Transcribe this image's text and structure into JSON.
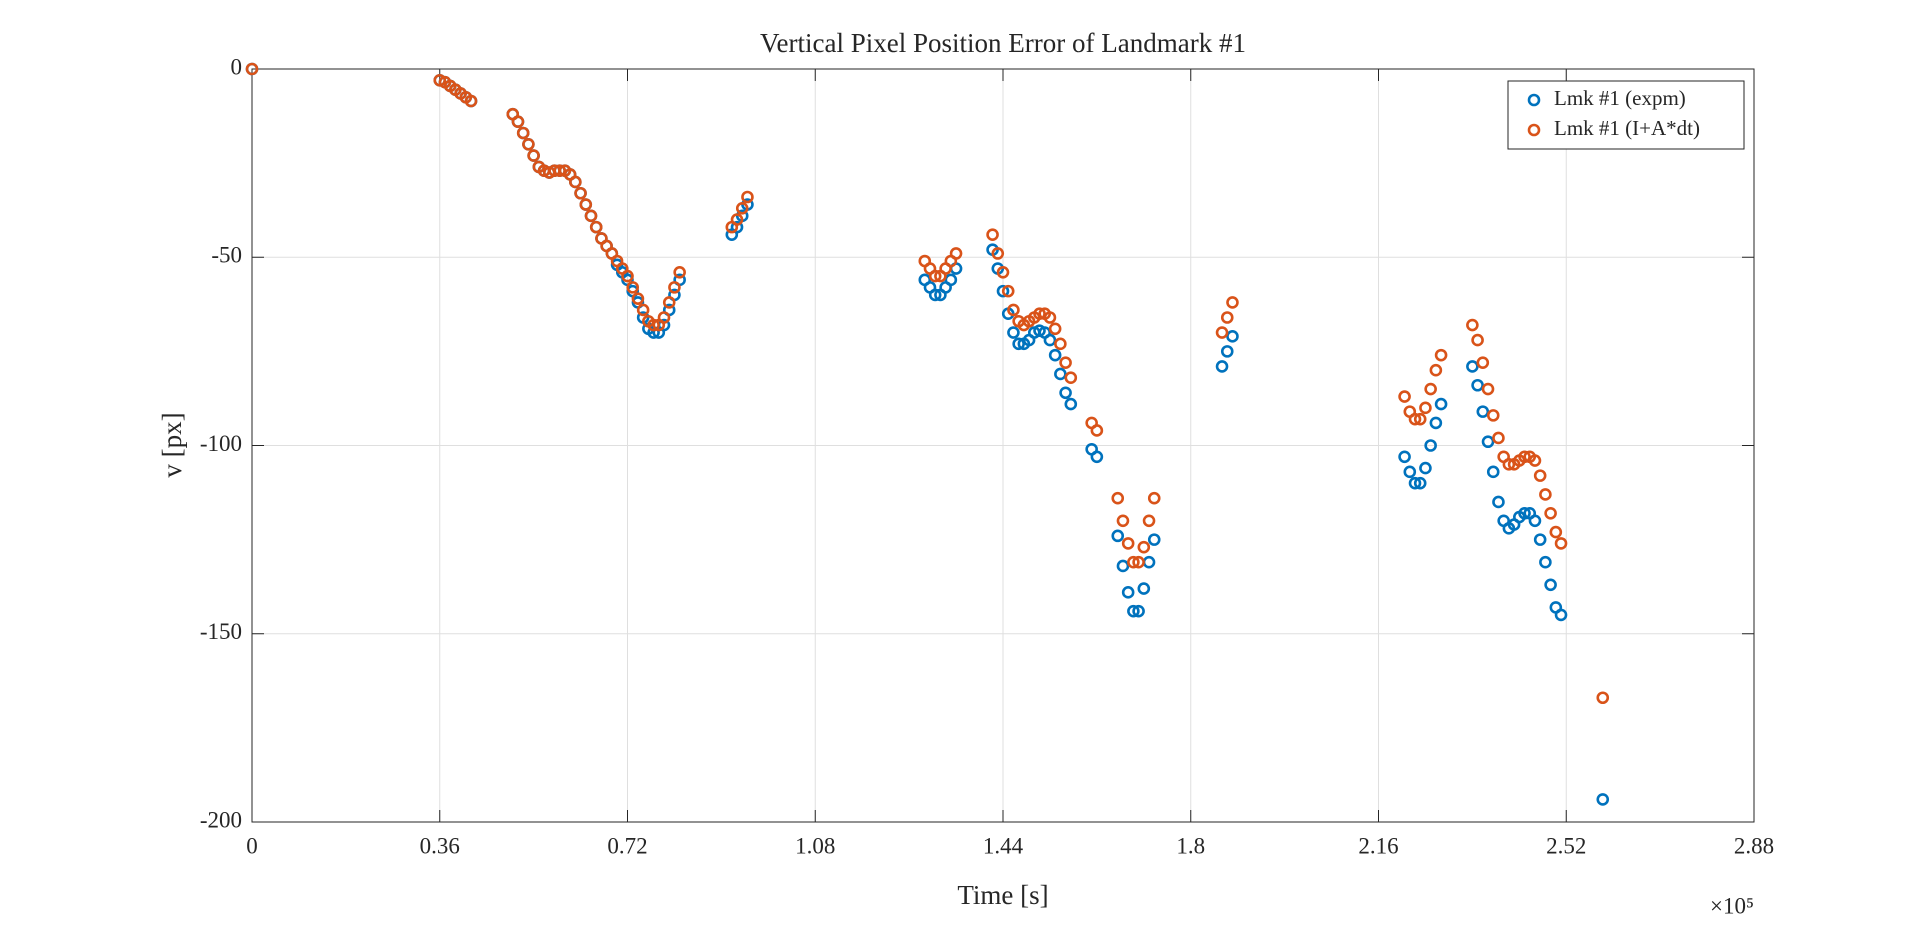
{
  "chart_data": {
    "type": "scatter",
    "title": "Vertical Pixel Position Error of Landmark #1",
    "xlabel": "Time [s]",
    "ylabel": "v [px]",
    "x_exponent": "×10⁵",
    "xlim": [
      0,
      2.88
    ],
    "ylim": [
      -200,
      0
    ],
    "xticks": [
      0,
      0.36,
      0.72,
      1.08,
      1.44,
      1.8,
      2.16,
      2.52,
      2.88
    ],
    "yticks": [
      -200,
      -150,
      -100,
      -50,
      0
    ],
    "grid": true,
    "legend": "northeast",
    "x": [
      0,
      0.36,
      0.37,
      0.38,
      0.39,
      0.4,
      0.41,
      0.42,
      0.5,
      0.51,
      0.52,
      0.53,
      0.54,
      0.55,
      0.56,
      0.57,
      0.58,
      0.59,
      0.6,
      0.61,
      0.62,
      0.63,
      0.64,
      0.65,
      0.66,
      0.67,
      0.68,
      0.69,
      0.7,
      0.71,
      0.72,
      0.73,
      0.74,
      0.75,
      0.76,
      0.77,
      0.78,
      0.79,
      0.8,
      0.81,
      0.82,
      0.92,
      0.93,
      0.94,
      0.95,
      1.29,
      1.3,
      1.31,
      1.32,
      1.33,
      1.34,
      1.35,
      1.42,
      1.43,
      1.44,
      1.45,
      1.46,
      1.47,
      1.48,
      1.49,
      1.5,
      1.51,
      1.52,
      1.53,
      1.54,
      1.55,
      1.56,
      1.57,
      1.61,
      1.62,
      1.66,
      1.67,
      1.68,
      1.69,
      1.7,
      1.71,
      1.72,
      1.73,
      1.86,
      1.87,
      1.88,
      2.21,
      2.22,
      2.23,
      2.24,
      2.25,
      2.26,
      2.27,
      2.28,
      2.34,
      2.35,
      2.36,
      2.37,
      2.38,
      2.39,
      2.4,
      2.41,
      2.42,
      2.43,
      2.44,
      2.45,
      2.46,
      2.47,
      2.48,
      2.49,
      2.5,
      2.51,
      2.59
    ],
    "series": [
      {
        "name": "Lmk #1 (expm)",
        "color": "#0072BD",
        "values": [
          0,
          -3,
          -3.5,
          -4.5,
          -5.5,
          -6.5,
          -7.5,
          -8.5,
          -12,
          -14,
          -17,
          -20,
          -23,
          -26,
          -27,
          -27.5,
          -27,
          -27,
          -27,
          -28,
          -30,
          -33,
          -36,
          -39,
          -42,
          -45,
          -47,
          -49,
          -52,
          -54,
          -56,
          -59,
          -62,
          -66,
          -69,
          -70,
          -70,
          -68,
          -64,
          -60,
          -56,
          -44,
          -42,
          -39,
          -36,
          -56,
          -58,
          -60,
          -60,
          -58,
          -56,
          -53,
          -48,
          -53,
          -59,
          -65,
          -70,
          -73,
          -73,
          -72,
          -70,
          -69.5,
          -70,
          -72,
          -76,
          -81,
          -86,
          -89,
          -101,
          -103,
          -124,
          -132,
          -139,
          -144,
          -144,
          -138,
          -131,
          -125,
          -79,
          -75,
          -71,
          -103,
          -107,
          -110,
          -110,
          -106,
          -100,
          -94,
          -89,
          -79,
          -84,
          -91,
          -99,
          -107,
          -115,
          -120,
          -122,
          -121,
          -119,
          -118,
          -118,
          -120,
          -125,
          -131,
          -137,
          -143,
          -145,
          -194
        ]
      },
      {
        "name": "Lmk #1 (I+A*dt)",
        "color": "#D95319",
        "values": [
          0,
          -3,
          -3.5,
          -4.5,
          -5.5,
          -6.5,
          -7.5,
          -8.5,
          -12,
          -14,
          -17,
          -20,
          -23,
          -26,
          -27,
          -27.5,
          -27,
          -27,
          -27,
          -28,
          -30,
          -33,
          -36,
          -39,
          -42,
          -45,
          -47,
          -49,
          -51,
          -53,
          -55,
          -58,
          -61,
          -64,
          -67,
          -68,
          -68,
          -66,
          -62,
          -58,
          -54,
          -42,
          -40,
          -37,
          -34,
          -51,
          -53,
          -55,
          -55,
          -53,
          -51,
          -49,
          -44,
          -49,
          -54,
          -59,
          -64,
          -67,
          -68,
          -67,
          -66,
          -65,
          -65,
          -66,
          -69,
          -73,
          -78,
          -82,
          -94,
          -96,
          -114,
          -120,
          -126,
          -131,
          -131,
          -127,
          -120,
          -114,
          -70,
          -66,
          -62,
          -87,
          -91,
          -93,
          -93,
          -90,
          -85,
          -80,
          -76,
          -68,
          -72,
          -78,
          -85,
          -92,
          -98,
          -103,
          -105,
          -105,
          -104,
          -103,
          -103,
          -104,
          -108,
          -113,
          -118,
          -123,
          -126,
          -167
        ]
      }
    ]
  }
}
